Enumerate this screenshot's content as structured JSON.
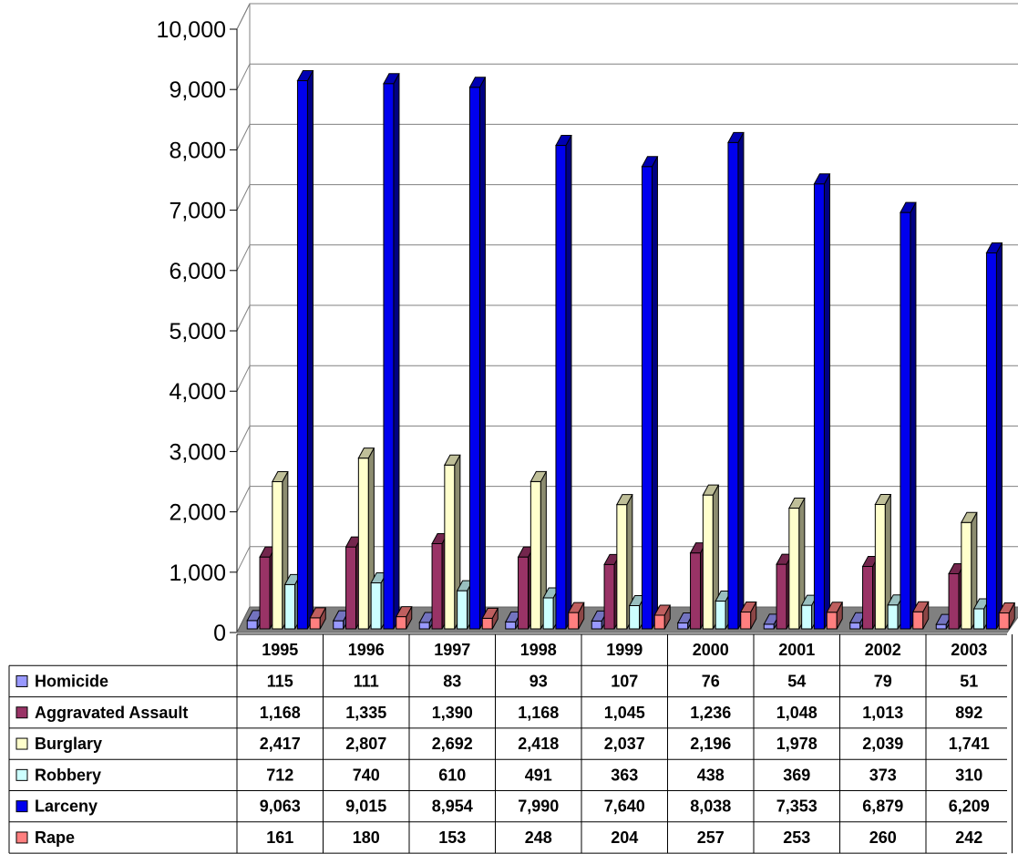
{
  "chart_data": {
    "type": "bar",
    "title": "",
    "xlabel": "",
    "ylabel": "",
    "ylim": [
      0,
      10000
    ],
    "yticks": [
      0,
      1000,
      2000,
      3000,
      4000,
      5000,
      6000,
      7000,
      8000,
      9000,
      10000
    ],
    "ytick_labels": [
      "0",
      "1,000",
      "2,000",
      "3,000",
      "4,000",
      "5,000",
      "6,000",
      "7,000",
      "8,000",
      "9,000",
      "10,000"
    ],
    "grid": true,
    "legend": "data-table-below",
    "categories": [
      "1995",
      "1996",
      "1997",
      "1998",
      "1999",
      "2000",
      "2001",
      "2002",
      "2003"
    ],
    "series": [
      {
        "name": "Homicide",
        "color": "#9999ff",
        "values": [
          115,
          111,
          83,
          93,
          107,
          76,
          54,
          79,
          51
        ],
        "labels": [
          "115",
          "111",
          "83",
          "93",
          "107",
          "76",
          "54",
          "79",
          "51"
        ]
      },
      {
        "name": "Aggravated Assault",
        "color": "#993366",
        "values": [
          1168,
          1335,
          1390,
          1168,
          1045,
          1236,
          1048,
          1013,
          892
        ],
        "labels": [
          "1,168",
          "1,335",
          "1,390",
          "1,168",
          "1,045",
          "1,236",
          "1,048",
          "1,013",
          "892"
        ]
      },
      {
        "name": "Burglary",
        "color": "#ffffcc",
        "values": [
          2417,
          2807,
          2692,
          2418,
          2037,
          2196,
          1978,
          2039,
          1741
        ],
        "labels": [
          "2,417",
          "2,807",
          "2,692",
          "2,418",
          "2,037",
          "2,196",
          "1,978",
          "2,039",
          "1,741"
        ]
      },
      {
        "name": "Robbery",
        "color": "#ccffff",
        "values": [
          712,
          740,
          610,
          491,
          363,
          438,
          369,
          373,
          310
        ],
        "labels": [
          "712",
          "740",
          "610",
          "491",
          "363",
          "438",
          "369",
          "373",
          "310"
        ]
      },
      {
        "name": "Larceny",
        "color": "#0000ee",
        "values": [
          9063,
          9015,
          8954,
          7990,
          7640,
          8038,
          7353,
          6879,
          6209
        ],
        "labels": [
          "9,063",
          "9,015",
          "8,954",
          "7,990",
          "7,640",
          "8,038",
          "7,353",
          "6,879",
          "6,209"
        ]
      },
      {
        "name": "Rape",
        "color": "#ff7f7f",
        "values": [
          161,
          180,
          153,
          248,
          204,
          257,
          253,
          260,
          242
        ],
        "labels": [
          "161",
          "180",
          "153",
          "248",
          "204",
          "257",
          "253",
          "260",
          "242"
        ]
      }
    ]
  }
}
